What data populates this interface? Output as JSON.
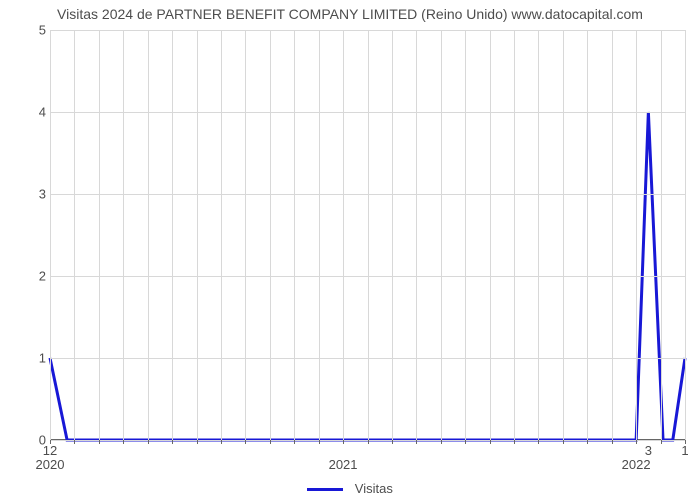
{
  "chart": {
    "type": "line",
    "title": "Visitas 2024 de PARTNER BENEFIT COMPANY LIMITED (Reino Unido) www.datocapital.com",
    "title_fontsize": 14,
    "background_color": "#ffffff",
    "grid_color": "#d8d8d8",
    "axis_color": "#666666",
    "line_color": "#1818d6",
    "line_width": 3,
    "ylim": [
      0,
      5
    ],
    "ytick_step": 1,
    "ylabels": [
      "0",
      "1",
      "2",
      "3",
      "4",
      "5"
    ],
    "xlim": [
      0,
      26
    ],
    "x_major_ticks": [
      {
        "pos": 0,
        "label": "2020"
      },
      {
        "pos": 12,
        "label": "2021"
      },
      {
        "pos": 24,
        "label": "2022"
      }
    ],
    "x_minor_tick_step": 1,
    "series": {
      "name": "Visitas",
      "x": [
        0,
        0.7,
        1,
        12,
        24,
        24.5,
        25.1,
        25.5,
        26
      ],
      "values": [
        1,
        0,
        0,
        0,
        0,
        4,
        0,
        0,
        1
      ]
    },
    "annotations": [
      {
        "x": 0,
        "text": "12"
      },
      {
        "x": 24.5,
        "text": "3"
      },
      {
        "x": 26,
        "text": "1"
      }
    ],
    "legend": {
      "label": "Visitas"
    }
  }
}
